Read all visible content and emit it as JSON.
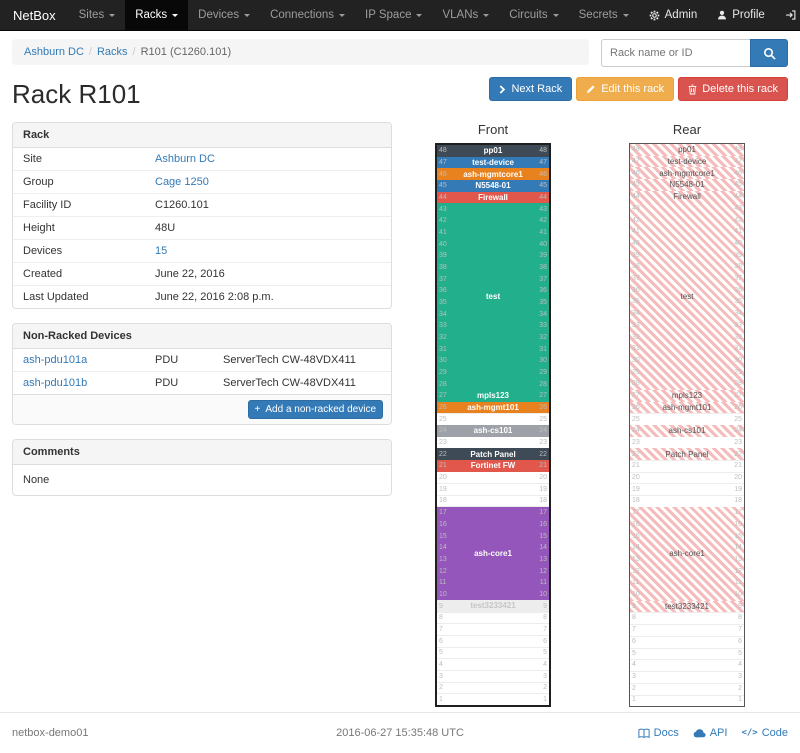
{
  "theme": {
    "accent": "#337ab7",
    "warning": "#f0ad4e",
    "danger": "#d9534f",
    "navbar_bg": "#222222"
  },
  "navbar": {
    "brand": "NetBox",
    "items": [
      {
        "label": "Sites",
        "active": false
      },
      {
        "label": "Racks",
        "active": true
      },
      {
        "label": "Devices",
        "active": false
      },
      {
        "label": "Connections",
        "active": false
      },
      {
        "label": "IP Space",
        "active": false
      },
      {
        "label": "VLANs",
        "active": false
      },
      {
        "label": "Circuits",
        "active": false
      },
      {
        "label": "Secrets",
        "active": false
      }
    ],
    "right": [
      {
        "label": "Admin",
        "icon": "gear"
      },
      {
        "label": "Profile",
        "icon": "user"
      },
      {
        "label": "Log out",
        "icon": "log-out"
      }
    ]
  },
  "breadcrumb": {
    "items": [
      {
        "label": "Ashburn DC",
        "link": true
      },
      {
        "label": "Racks",
        "link": true
      },
      {
        "label": "R101 (C1260.101)",
        "link": false
      }
    ]
  },
  "search": {
    "placeholder": "Rack name or ID"
  },
  "actions": {
    "next": "Next Rack",
    "edit": "Edit this rack",
    "delete": "Delete this rack"
  },
  "page_title": "Rack R101",
  "rack_panel": {
    "title": "Rack",
    "rows": [
      {
        "label": "Site",
        "value": "Ashburn DC",
        "link": true
      },
      {
        "label": "Group",
        "value": "Cage 1250",
        "link": true
      },
      {
        "label": "Facility ID",
        "value": "C1260.101",
        "link": false
      },
      {
        "label": "Height",
        "value": "48U",
        "link": false
      },
      {
        "label": "Devices",
        "value": "15",
        "link": true
      },
      {
        "label": "Created",
        "value": "June 22, 2016",
        "link": false
      },
      {
        "label": "Last Updated",
        "value": "June 22, 2016 2:08 p.m.",
        "link": false
      }
    ]
  },
  "non_racked": {
    "title": "Non-Racked Devices",
    "rows": [
      {
        "name": "ash-pdu101a",
        "role": "PDU",
        "model": "ServerTech CW-48VDX411"
      },
      {
        "name": "ash-pdu101b",
        "role": "PDU",
        "model": "ServerTech CW-48VDX411"
      }
    ],
    "add_button": "Add a non-racked device"
  },
  "comments": {
    "title": "Comments",
    "body": "None"
  },
  "elevation": {
    "front_title": "Front",
    "rear_title": "Rear",
    "units": 48,
    "hatch_color": "#f6bcbc",
    "devices": [
      {
        "name": "pp01",
        "top_u": 48,
        "height": 1,
        "color": "#3e4a56",
        "rear": true
      },
      {
        "name": "test-device",
        "top_u": 47,
        "height": 1,
        "color": "#337ab7",
        "rear": true
      },
      {
        "name": "ash-mgmtcore1",
        "top_u": 46,
        "height": 1,
        "color": "#e8821e",
        "rear": true
      },
      {
        "name": "N5548-01",
        "top_u": 45,
        "height": 1,
        "color": "#337ab7",
        "rear": true
      },
      {
        "name": "Firewall",
        "top_u": 44,
        "height": 1,
        "color": "#e2574c",
        "rear": true
      },
      {
        "name": "test",
        "top_u": 43,
        "height": 16,
        "color": "#21b08b",
        "rear": true
      },
      {
        "name": "mpls123",
        "top_u": 27,
        "height": 1,
        "color": "#21b08b",
        "rear": true
      },
      {
        "name": "ash-mgmt101",
        "top_u": 26,
        "height": 1,
        "color": "#e8821e",
        "rear": true
      },
      {
        "name": "ash-cs101",
        "top_u": 24,
        "height": 1,
        "color": "#9ea2a8",
        "rear": true
      },
      {
        "name": "Patch Panel",
        "top_u": 22,
        "height": 1,
        "color": "#3e4a56",
        "rear": true
      },
      {
        "name": "Fortinet FW",
        "top_u": 21,
        "height": 1,
        "color": "#e2574c",
        "rear": false
      },
      {
        "name": "ash-core1",
        "top_u": 17,
        "height": 8,
        "color": "#9456ba",
        "rear": true
      },
      {
        "name": "test3233421",
        "top_u": 9,
        "height": 1,
        "color": "#ededed",
        "text_color": "#c6c6c6",
        "rear": true
      }
    ]
  },
  "footer": {
    "hostname": "netbox-demo01",
    "timestamp": "2016-06-27 15:35:48 UTC",
    "links": [
      {
        "label": "Docs",
        "icon": "book"
      },
      {
        "label": "API",
        "icon": "cloud"
      },
      {
        "label": "Code",
        "icon": "code"
      }
    ]
  }
}
